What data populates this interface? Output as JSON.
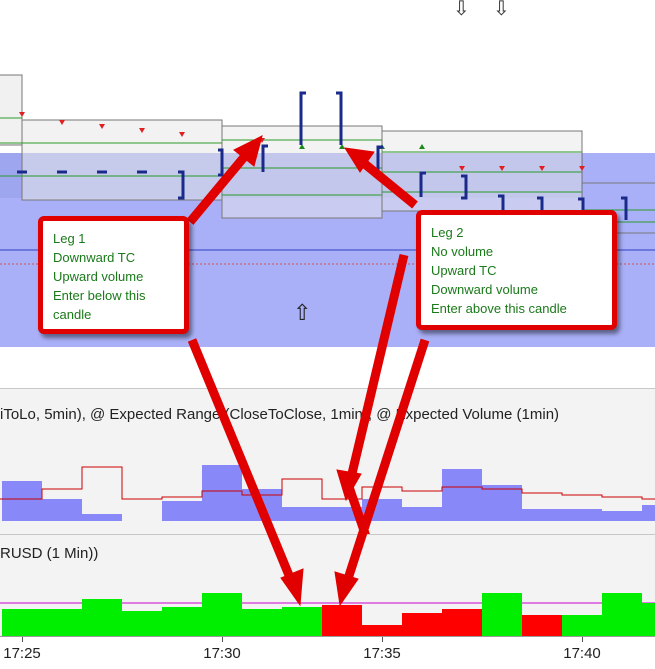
{
  "chart_top": {
    "up_arrow_glyph": "⇧",
    "down_arrow_glyph": "⇩"
  },
  "middle_panel": {
    "title": "iToLo, 5min), @ Expected Range (CloseToClose, 1min), @ Expected Volume (1min)"
  },
  "bottom_panel": {
    "title": "RUSD (1 Min))"
  },
  "callout_leg1": {
    "lines": [
      "Leg 1",
      "Downward TC",
      "Upward volume",
      "Enter below this",
      "candle"
    ]
  },
  "callout_leg2": {
    "lines": [
      "Leg 2",
      "No volume",
      "Upward TC",
      "Downward volume",
      "Enter above this candle"
    ]
  },
  "time_axis": {
    "labels": [
      "17:25",
      "17:30",
      "17:35",
      "17:40"
    ]
  },
  "colors": {
    "callout_border": "#e00000",
    "callout_text": "#1a7a1a",
    "candle": "#1a2a8a",
    "band": "#aab0f8",
    "volume_up": "#00ee00",
    "volume_down": "#ff0000",
    "range_bar": "#8888f8"
  }
}
